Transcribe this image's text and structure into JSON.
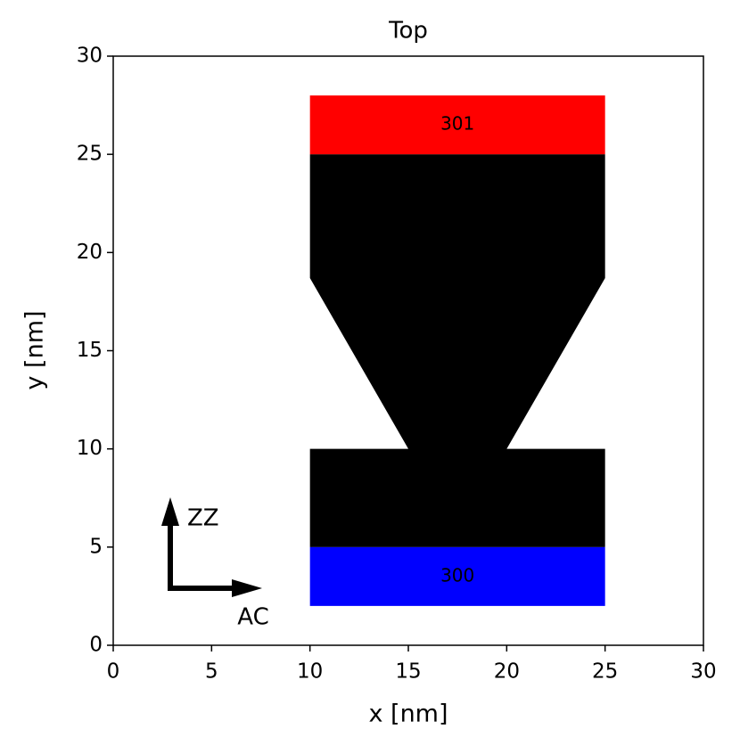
{
  "chart_data": {
    "type": "polygon",
    "title": "Top",
    "x_label": "x [nm]",
    "y_label": "y [nm]",
    "xlim": [
      0,
      30
    ],
    "ylim": [
      0,
      30
    ],
    "xticks": [
      0,
      5,
      10,
      15,
      20,
      25,
      30
    ],
    "yticks": [
      0,
      5,
      10,
      15,
      20,
      25,
      30
    ],
    "shapes": [
      {
        "color": "#000000",
        "x": [
          10,
          25,
          25,
          20,
          25,
          25,
          10,
          10,
          15,
          10
        ],
        "y": [
          5,
          5,
          10,
          10,
          18.7,
          25,
          25,
          18.7,
          10,
          10
        ]
      },
      {
        "color": "#ff0000",
        "label": "301",
        "x": [
          10,
          25,
          25,
          10
        ],
        "y": [
          25,
          25,
          28,
          28
        ]
      },
      {
        "color": "#0000ff",
        "label": "300",
        "x": [
          10,
          25,
          25,
          10
        ],
        "y": [
          2,
          2,
          5,
          5
        ]
      }
    ],
    "annotations": [
      {
        "text": "ZZ"
      },
      {
        "text": "AC"
      }
    ]
  }
}
